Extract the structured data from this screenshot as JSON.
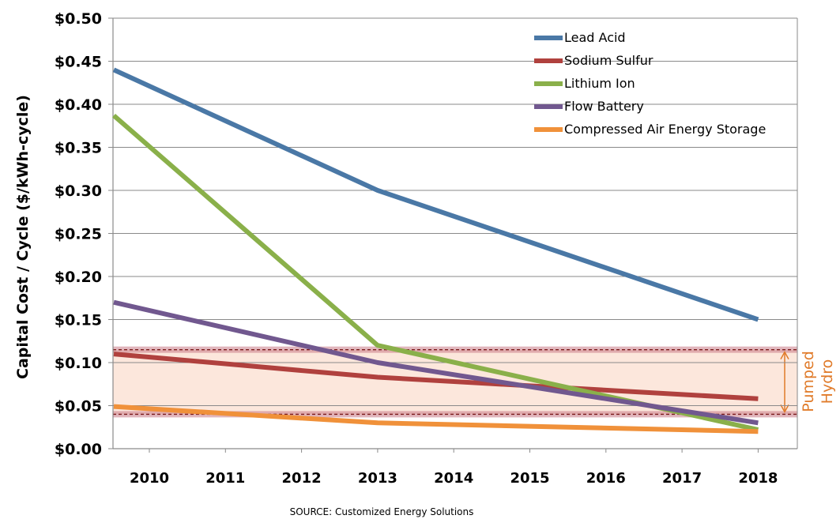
{
  "chart_data": {
    "type": "line",
    "ylabel": "Capital Cost / Cycle  ($/kWh-cycle)",
    "xlabel": "",
    "categories": [
      "2010",
      "2011",
      "2012",
      "2013",
      "2014",
      "2015",
      "2016",
      "2017",
      "2018"
    ],
    "ylim": [
      0,
      0.5
    ],
    "y_ticks": [
      "$0.00",
      "$0.05",
      "$0.10",
      "$0.15",
      "$0.20",
      "$0.25",
      "$0.30",
      "$0.35",
      "$0.40",
      "$0.45",
      "$0.50"
    ],
    "grid": true,
    "legend_position": "top-right",
    "series": [
      {
        "name": "Lead Acid",
        "color": "#4a78a6",
        "points": [
          [
            2009.5,
            0.44
          ],
          [
            2013,
            0.3
          ],
          [
            2018,
            0.15
          ]
        ]
      },
      {
        "name": "Sodium Sulfur",
        "color": "#b0413e",
        "points": [
          [
            2009.5,
            0.11
          ],
          [
            2013,
            0.083
          ],
          [
            2018,
            0.058
          ]
        ]
      },
      {
        "name": "Lithium Ion",
        "color": "#8ab04a",
        "points": [
          [
            2009.5,
            0.387
          ],
          [
            2013,
            0.12
          ],
          [
            2018,
            0.022
          ]
        ]
      },
      {
        "name": "Flow Battery",
        "color": "#71588f",
        "points": [
          [
            2009.5,
            0.17
          ],
          [
            2013,
            0.1
          ],
          [
            2018,
            0.03
          ]
        ]
      },
      {
        "name": "Compressed Air Energy Storage",
        "color": "#f0913a",
        "points": [
          [
            2009.5,
            0.049
          ],
          [
            2013,
            0.03
          ],
          [
            2018,
            0.02
          ]
        ]
      }
    ],
    "band": {
      "label_line1": "Pumped",
      "label_line2": "Hydro",
      "y_low": 0.04,
      "y_high": 0.115,
      "color": "#e07b2a"
    },
    "source": "SOURCE: Customized Energy Solutions"
  }
}
